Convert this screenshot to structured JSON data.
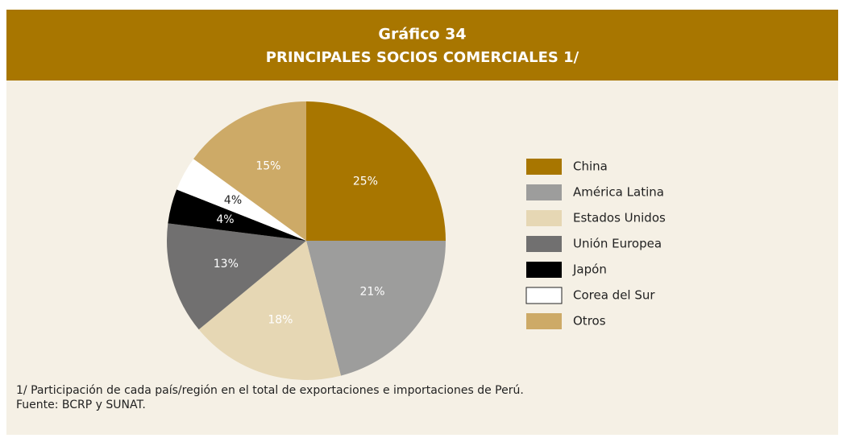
{
  "chart_data": {
    "type": "pie",
    "title": "Gráfico 34",
    "subtitle": "PRINCIPALES SOCIOS COMERCIALES 1/",
    "categories": [
      "China",
      "América Latina",
      "Estados Unidos",
      "Unión Europea",
      "Japón",
      "Corea del Sur",
      "Otros"
    ],
    "values": [
      25,
      21,
      18,
      13,
      4,
      4,
      15
    ],
    "value_labels": [
      "25%",
      "21%",
      "18%",
      "13%",
      "4%",
      "4%",
      "15%"
    ],
    "colors": [
      "#a87600",
      "#9d9d9c",
      "#e6d7b4",
      "#717070",
      "#000000",
      "#ffffff",
      "#cdaa67"
    ],
    "legend": "right",
    "notes": [
      "1/ Participación de cada país/región en el total de exportaciones e importaciones de Perú.",
      "Fuente: BCRP y SUNAT."
    ]
  }
}
